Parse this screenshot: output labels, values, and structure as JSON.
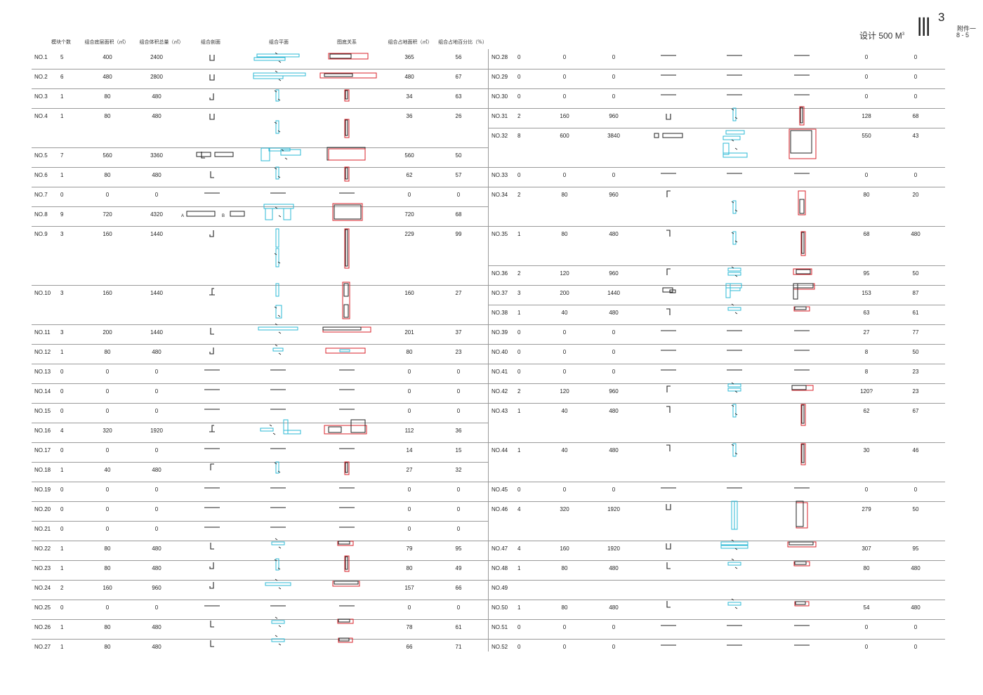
{
  "header": {
    "col_count": "模块个数",
    "col_area": "组合底层面积（㎡）",
    "col_volume": "组合体积总量（㎡）",
    "col_section": "组合剖面",
    "col_plan": "组合平面",
    "col_figure": "图底关系",
    "col_footprint": "组合占地面积（㎡）",
    "col_percent": "组合占地百分比（%）",
    "design_label": "设计  500 M",
    "design_sup": "3",
    "logo": "III",
    "logo_sup": "3",
    "attachment": "附件一",
    "page_no": "8 - 5"
  },
  "section_labels": {
    "a": "A",
    "b": "B"
  },
  "rows": [
    {
      "id": "NO.1",
      "count": "5",
      "area": "400",
      "volume": "2400",
      "footprint": "365",
      "percent": "56"
    },
    {
      "id": "NO.2",
      "count": "6",
      "area": "480",
      "volume": "2800",
      "footprint": "480",
      "percent": "67"
    },
    {
      "id": "NO.3",
      "count": "1",
      "area": "80",
      "volume": "480",
      "footprint": "34",
      "percent": "63"
    },
    {
      "id": "NO.4",
      "count": "1",
      "area": "80",
      "volume": "480",
      "footprint": "36",
      "percent": "26"
    },
    {
      "id": "NO.5",
      "count": "7",
      "area": "560",
      "volume": "3360",
      "footprint": "560",
      "percent": "50"
    },
    {
      "id": "NO.6",
      "count": "1",
      "area": "80",
      "volume": "480",
      "footprint": "62",
      "percent": "57"
    },
    {
      "id": "NO.7",
      "count": "0",
      "area": "0",
      "volume": "0",
      "footprint": "0",
      "percent": "0"
    },
    {
      "id": "NO.8",
      "count": "9",
      "area": "720",
      "volume": "4320",
      "footprint": "720",
      "percent": "68"
    },
    {
      "id": "NO.9",
      "count": "3",
      "area": "160",
      "volume": "1440",
      "footprint": "229",
      "percent": "99"
    },
    {
      "id": "NO.10",
      "count": "3",
      "area": "160",
      "volume": "1440",
      "footprint": "160",
      "percent": "27"
    },
    {
      "id": "NO.11",
      "count": "3",
      "area": "200",
      "volume": "1440",
      "footprint": "201",
      "percent": "37"
    },
    {
      "id": "NO.12",
      "count": "1",
      "area": "80",
      "volume": "480",
      "footprint": "80",
      "percent": "23"
    },
    {
      "id": "NO.13",
      "count": "0",
      "area": "0",
      "volume": "0",
      "footprint": "0",
      "percent": "0"
    },
    {
      "id": "NO.14",
      "count": "0",
      "area": "0",
      "volume": "0",
      "footprint": "0",
      "percent": "0"
    },
    {
      "id": "NO.15",
      "count": "0",
      "area": "0",
      "volume": "0",
      "footprint": "0",
      "percent": "0"
    },
    {
      "id": "NO.16",
      "count": "4",
      "area": "320",
      "volume": "1920",
      "footprint": "112",
      "percent": "36"
    },
    {
      "id": "NO.17",
      "count": "0",
      "area": "0",
      "volume": "0",
      "footprint": "14",
      "percent": "15"
    },
    {
      "id": "NO.18",
      "count": "1",
      "area": "40",
      "volume": "480",
      "footprint": "27",
      "percent": "32"
    },
    {
      "id": "NO.19",
      "count": "0",
      "area": "0",
      "volume": "0",
      "footprint": "0",
      "percent": "0"
    },
    {
      "id": "NO.20",
      "count": "0",
      "area": "0",
      "volume": "0",
      "footprint": "0",
      "percent": "0"
    },
    {
      "id": "NO.21",
      "count": "0",
      "area": "0",
      "volume": "0",
      "footprint": "0",
      "percent": "0"
    },
    {
      "id": "NO.22",
      "count": "1",
      "area": "80",
      "volume": "480",
      "footprint": "79",
      "percent": "95"
    },
    {
      "id": "NO.23",
      "count": "1",
      "area": "80",
      "volume": "480",
      "footprint": "80",
      "percent": "49"
    },
    {
      "id": "NO.24",
      "count": "2",
      "area": "160",
      "volume": "960",
      "footprint": "157",
      "percent": "66"
    },
    {
      "id": "NO.25",
      "count": "0",
      "area": "0",
      "volume": "0",
      "footprint": "0",
      "percent": "0"
    },
    {
      "id": "NO.26",
      "count": "1",
      "area": "80",
      "volume": "480",
      "footprint": "78",
      "percent": "61"
    },
    {
      "id": "NO.27",
      "count": "1",
      "area": "80",
      "volume": "480",
      "footprint": "66",
      "percent": "71"
    },
    {
      "id": "NO.28",
      "count": "0",
      "area": "0",
      "volume": "0",
      "footprint": "0",
      "percent": "0"
    },
    {
      "id": "NO.29",
      "count": "0",
      "area": "0",
      "volume": "0",
      "footprint": "0",
      "percent": "0"
    },
    {
      "id": "NO.30",
      "count": "0",
      "area": "0",
      "volume": "0",
      "footprint": "0",
      "percent": "0"
    },
    {
      "id": "NO.31",
      "count": "2",
      "area": "160",
      "volume": "960",
      "footprint": "128",
      "percent": "68"
    },
    {
      "id": "NO.32",
      "count": "8",
      "area": "600",
      "volume": "3840",
      "footprint": "550",
      "percent": "43"
    },
    {
      "id": "NO.33",
      "count": "0",
      "area": "0",
      "volume": "0",
      "footprint": "0",
      "percent": "0"
    },
    {
      "id": "NO.34",
      "count": "2",
      "area": "80",
      "volume": "960",
      "footprint": "80",
      "percent": "20"
    },
    {
      "id": "NO.35",
      "count": "1",
      "area": "80",
      "volume": "480",
      "footprint": "68",
      "percent": "480"
    },
    {
      "id": "NO.36",
      "count": "2",
      "area": "120",
      "volume": "960",
      "footprint": "95",
      "percent": "50"
    },
    {
      "id": "NO.37",
      "count": "3",
      "area": "200",
      "volume": "1440",
      "footprint": "153",
      "percent": "87"
    },
    {
      "id": "NO.38",
      "count": "1",
      "area": "40",
      "volume": "480",
      "footprint": "63",
      "percent": "61"
    },
    {
      "id": "NO.39",
      "count": "0",
      "area": "0",
      "volume": "0",
      "footprint": "27",
      "percent": "77"
    },
    {
      "id": "NO.40",
      "count": "0",
      "area": "0",
      "volume": "0",
      "footprint": "8",
      "percent": "50"
    },
    {
      "id": "NO.41",
      "count": "0",
      "area": "0",
      "volume": "0",
      "footprint": "8",
      "percent": "23"
    },
    {
      "id": "NO.42",
      "count": "2",
      "area": "120",
      "volume": "960",
      "footprint": "120?",
      "percent": "23"
    },
    {
      "id": "NO.43",
      "count": "1",
      "area": "40",
      "volume": "480",
      "footprint": "62",
      "percent": "67"
    },
    {
      "id": "NO.44",
      "count": "1",
      "area": "40",
      "volume": "480",
      "footprint": "30",
      "percent": "46"
    },
    {
      "id": "NO.45",
      "count": "0",
      "area": "0",
      "volume": "0",
      "footprint": "0",
      "percent": "0"
    },
    {
      "id": "NO.46",
      "count": "4",
      "area": "320",
      "volume": "1920",
      "footprint": "279",
      "percent": "50"
    },
    {
      "id": "NO.47",
      "count": "4",
      "area": "160",
      "volume": "1920",
      "footprint": "307",
      "percent": "95"
    },
    {
      "id": "NO.48",
      "count": "1",
      "area": "80",
      "volume": "480",
      "footprint": "80",
      "percent": "480"
    },
    {
      "id": "NO.49",
      "count": "",
      "area": "",
      "volume": "",
      "footprint": "",
      "percent": ""
    },
    {
      "id": "NO.50",
      "count": "1",
      "area": "80",
      "volume": "480",
      "footprint": "54",
      "percent": "480"
    },
    {
      "id": "NO.51",
      "count": "0",
      "area": "0",
      "volume": "0",
      "footprint": "0",
      "percent": "0"
    },
    {
      "id": "NO.52",
      "count": "0",
      "area": "0",
      "volume": "0",
      "footprint": "0",
      "percent": "0"
    }
  ],
  "colors": {
    "plan": "#2bb8d6",
    "figure_red": "#d8222a",
    "ink": "#222222",
    "rule": "#9a9a9a"
  }
}
